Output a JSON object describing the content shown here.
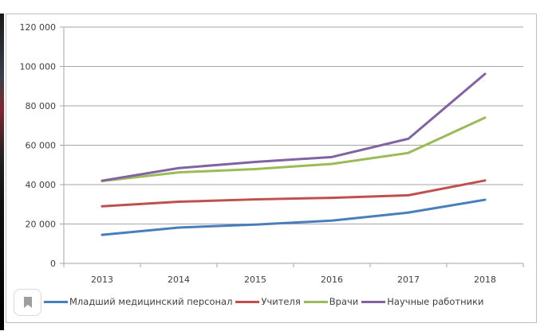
{
  "chart_data": {
    "type": "line",
    "title": "",
    "xlabel": "",
    "ylabel": "",
    "categories": [
      "2013",
      "2014",
      "2015",
      "2016",
      "2017",
      "2018"
    ],
    "ylim": [
      0,
      120000
    ],
    "yticks": [
      0,
      20000,
      40000,
      60000,
      80000,
      100000,
      120000
    ],
    "ytick_labels": [
      "0",
      "20 000",
      "40 000",
      "60 000",
      "80 000",
      "100 000",
      "120 000"
    ],
    "grid": true,
    "legend_position": "bottom",
    "series": [
      {
        "name": "Младший медицинский персонал",
        "color": "#4a7ebb",
        "values": [
          14500,
          18200,
          19700,
          21700,
          25800,
          32300
        ]
      },
      {
        "name": "Учителя",
        "color": "#c0504d",
        "values": [
          29000,
          31300,
          32500,
          33300,
          34600,
          42100
        ]
      },
      {
        "name": "Врачи",
        "color": "#9bbb59",
        "values": [
          41800,
          46200,
          47900,
          50500,
          56100,
          74000
        ]
      },
      {
        "name": "Научные работники",
        "color": "#8064a2",
        "values": [
          42000,
          48400,
          51500,
          54000,
          63300,
          96200
        ]
      }
    ]
  },
  "legend": {
    "items": [
      {
        "label": "Младший медицинский персонал",
        "color": "#4a7ebb"
      },
      {
        "label": "Учителя",
        "color": "#c0504d"
      },
      {
        "label": "Врачи",
        "color": "#9bbb59"
      },
      {
        "label": "Научные работники",
        "color": "#8064a2"
      }
    ]
  },
  "overlay": {
    "bookmark_icon": "bookmark-icon"
  }
}
